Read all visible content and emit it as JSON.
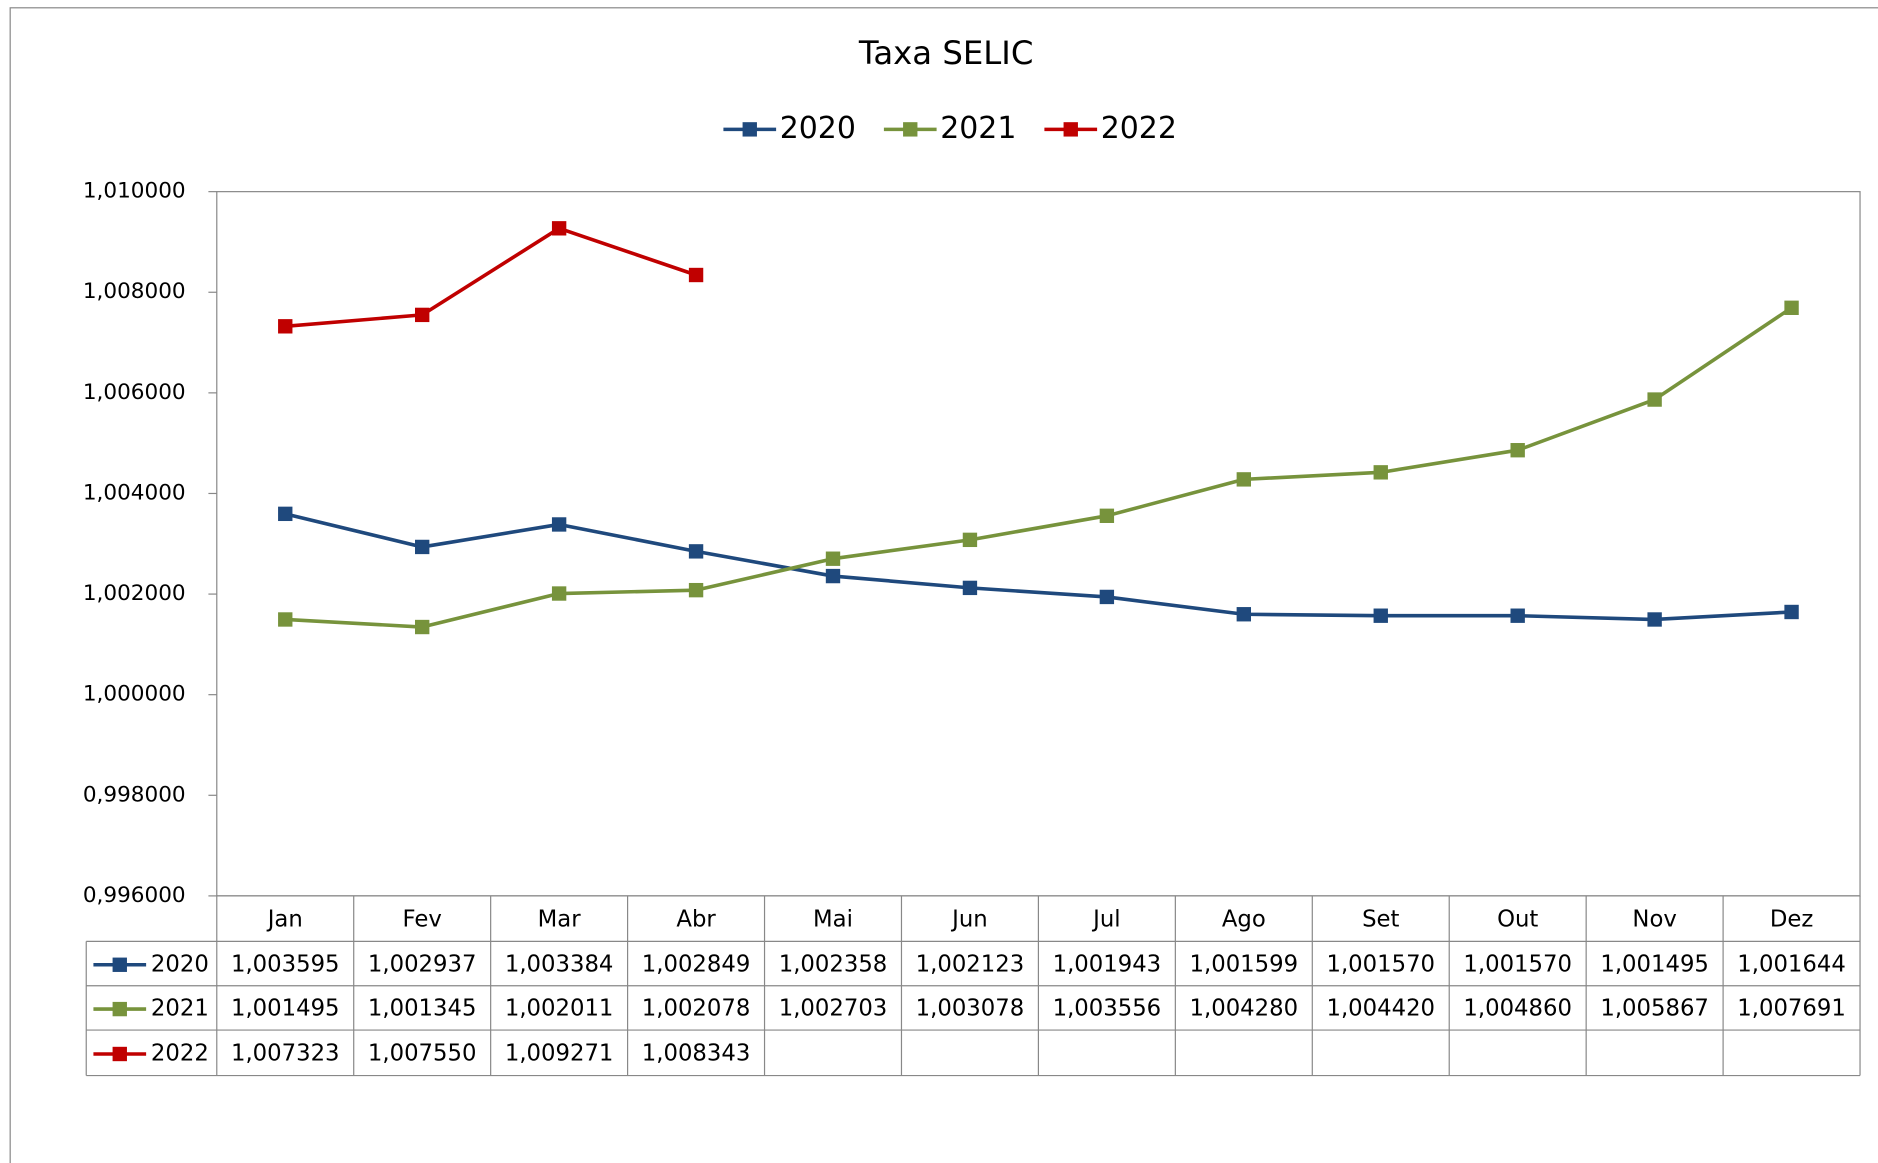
{
  "chart_data": {
    "type": "line",
    "title": "Taxa SELIC",
    "categories": [
      "Jan",
      "Fev",
      "Mar",
      "Abr",
      "Mai",
      "Jun",
      "Jul",
      "Ago",
      "Set",
      "Out",
      "Nov",
      "Dez"
    ],
    "series": [
      {
        "name": "2020",
        "color": "#1f497d",
        "values": [
          1.003595,
          1.002937,
          1.003384,
          1.002849,
          1.002358,
          1.002123,
          1.001943,
          1.001599,
          1.00157,
          1.00157,
          1.001495,
          1.001644
        ],
        "value_labels": [
          "1,003595",
          "1,002937",
          "1,003384",
          "1,002849",
          "1,002358",
          "1,002123",
          "1,001943",
          "1,001599",
          "1,001570",
          "1,001570",
          "1,001495",
          "1,001644"
        ]
      },
      {
        "name": "2021",
        "color": "#77933c",
        "values": [
          1.001495,
          1.001345,
          1.002011,
          1.002078,
          1.002703,
          1.003078,
          1.003556,
          1.00428,
          1.00442,
          1.00486,
          1.005867,
          1.007691
        ],
        "value_labels": [
          "1,001495",
          "1,001345",
          "1,002011",
          "1,002078",
          "1,002703",
          "1,003078",
          "1,003556",
          "1,004280",
          "1,004420",
          "1,004860",
          "1,005867",
          "1,007691"
        ]
      },
      {
        "name": "2022",
        "color": "#c00000",
        "values": [
          1.007323,
          1.00755,
          1.009271,
          1.008343,
          null,
          null,
          null,
          null,
          null,
          null,
          null,
          null
        ],
        "value_labels": [
          "1,007323",
          "1,007550",
          "1,009271",
          "1,008343",
          null,
          null,
          null,
          null,
          null,
          null,
          null,
          null
        ]
      }
    ],
    "ylim": [
      0.996,
      1.01
    ],
    "yticks": [
      {
        "value": 0.996,
        "label": "0,996000"
      },
      {
        "value": 0.998,
        "label": "0,998000"
      },
      {
        "value": 1.0,
        "label": "1,000000"
      },
      {
        "value": 1.002,
        "label": "1,002000"
      },
      {
        "value": 1.004,
        "label": "1,004000"
      },
      {
        "value": 1.006,
        "label": "1,006000"
      },
      {
        "value": 1.008,
        "label": "1,008000"
      },
      {
        "value": 1.01,
        "label": "1,010000"
      }
    ],
    "grid": false,
    "legend": "top",
    "data_table": true
  }
}
